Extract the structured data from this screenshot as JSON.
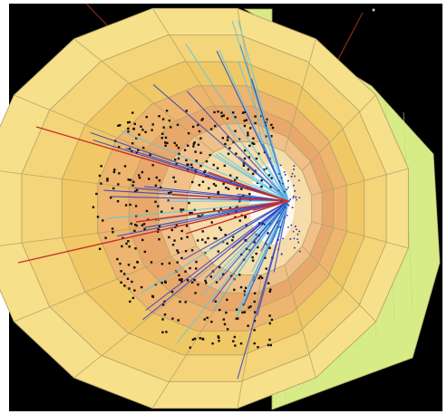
{
  "scene": {
    "colors": {
      "background": "#000000",
      "frame": "#ffffff",
      "detector_outer": "#f6e08a",
      "detector_mid": "#f0c865",
      "detector_inner": "#e9a86b",
      "detector_side": "#d7ec86",
      "grid_line": "#b8a46a",
      "track_blue": "#2d3fc4",
      "track_cyan": "#5bc8e8",
      "track_red": "#c8302c",
      "hit": "#111111"
    },
    "icons": {
      "detector": "cylindrical-detector-icon",
      "tracks": "particle-tracks-icon",
      "hits": "energy-deposits-icon"
    }
  }
}
